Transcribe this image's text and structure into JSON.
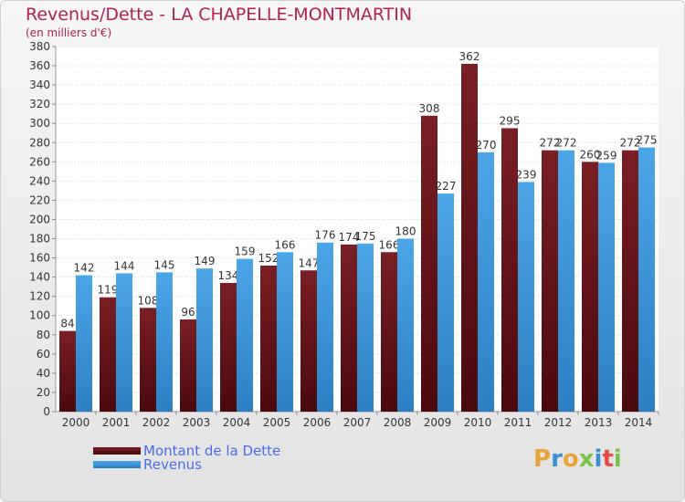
{
  "title": "Revenus/Dette - LA CHAPELLE-MONTMARTIN",
  "subtitle": "(en milliers d'€)",
  "colors": {
    "debt": "#7a1f24",
    "debt_dark": "#4a0a0e",
    "revenue": "#4ba6e8",
    "revenue_dark": "#2d7fc4",
    "title": "#b0224f"
  },
  "legend": {
    "debt_label": "Montant de la Dette",
    "revenue_label": "Revenus"
  },
  "logo": {
    "text": "Proxiti",
    "letters": [
      "P",
      "r",
      "o",
      "x",
      "i",
      "t",
      "i"
    ],
    "colors": [
      "#e8a33a",
      "#3b8fd6",
      "#e8a33a",
      "#7bc24a",
      "#3b8fd6",
      "#e84a4a",
      "#7bc24a"
    ]
  },
  "chart_data": {
    "type": "bar",
    "title": "Revenus/Dette - LA CHAPELLE-MONTMARTIN",
    "subtitle": "(en milliers d'€)",
    "categories": [
      "2000",
      "2001",
      "2002",
      "2003",
      "2004",
      "2005",
      "2006",
      "2007",
      "2008",
      "2009",
      "2010",
      "2011",
      "2012",
      "2013",
      "2014"
    ],
    "series": [
      {
        "name": "Montant de la Dette",
        "values": [
          84,
          119,
          108,
          96,
          134,
          152,
          147,
          174,
          166,
          308,
          362,
          295,
          272,
          260,
          272
        ]
      },
      {
        "name": "Revenus",
        "values": [
          142,
          144,
          145,
          149,
          159,
          166,
          176,
          175,
          180,
          227,
          270,
          239,
          272,
          259,
          275
        ]
      }
    ],
    "ylim": [
      0,
      380
    ],
    "ytick_step": 20,
    "grid": true,
    "legend_position": "bottom-left"
  }
}
